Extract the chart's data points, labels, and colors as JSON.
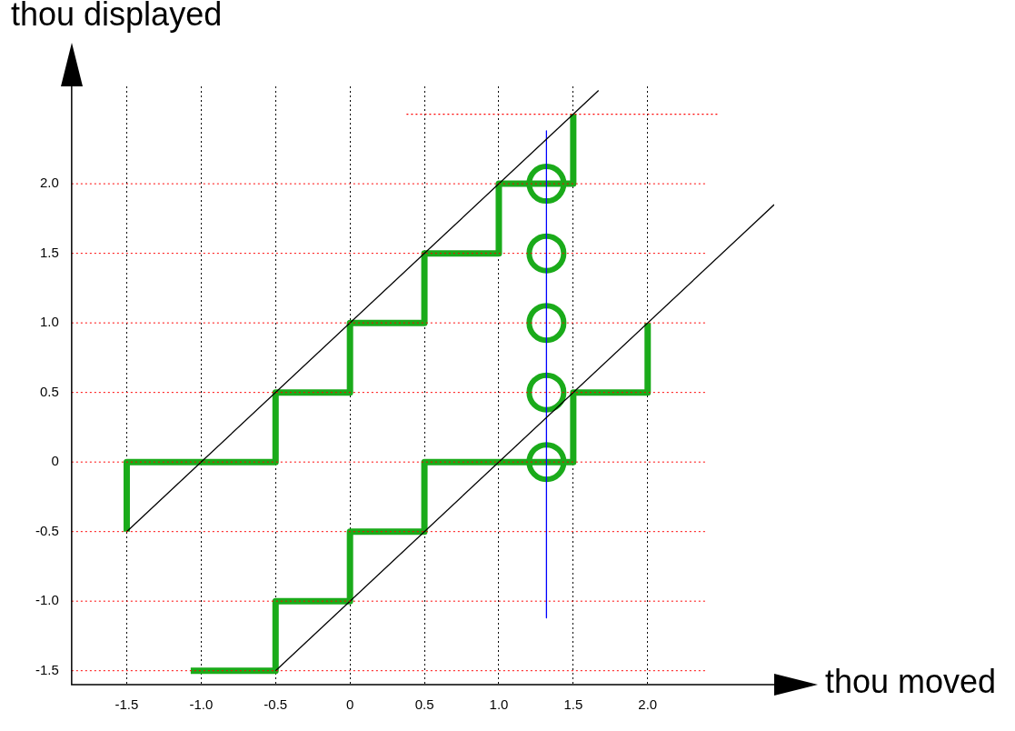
{
  "chart_data": {
    "type": "line",
    "xlabel": "thou moved",
    "ylabel": "thou displayed",
    "xlim": [
      -1.87,
      2.85
    ],
    "ylim": [
      -1.6,
      2.7
    ],
    "xticks": [
      -1.5,
      {
        "value": -1,
        "label": "-1.0"
      },
      -0.5,
      0,
      0.5,
      {
        "value": 1,
        "label": "1.0"
      },
      1.5,
      {
        "value": 2,
        "label": "2.0"
      }
    ],
    "yticks": [
      -1.5,
      {
        "value": -1,
        "label": "-1.0"
      },
      -0.5,
      0,
      0.5,
      {
        "value": 1,
        "label": "1.0"
      },
      1.5,
      {
        "value": 2,
        "label": "2.0"
      }
    ],
    "grid": "x",
    "legend": false,
    "ref_lines": [
      {
        "axis": "y",
        "value": -1.5,
        "color": "#ff0000",
        "line_style": "dotted"
      },
      {
        "axis": "y",
        "value": -1,
        "color": "#ff0000",
        "line_style": "dotted"
      },
      {
        "axis": "y",
        "value": -0.5,
        "color": "#ff0000",
        "line_style": "dotted"
      },
      {
        "axis": "y",
        "value": 0,
        "color": "#ff0000",
        "line_style": "dotted"
      },
      {
        "axis": "y",
        "value": 0.5,
        "color": "#ff0000",
        "line_style": "dotted"
      },
      {
        "axis": "y",
        "value": 1,
        "color": "#ff0000",
        "line_style": "dotted"
      },
      {
        "axis": "y",
        "value": 1.5,
        "color": "#ff0000",
        "line_style": "dotted"
      },
      {
        "axis": "y",
        "value": 2,
        "color": "#ff0000",
        "line_style": "dotted"
      }
    ],
    "series": [
      {
        "color": "#000000",
        "x": [
          -1.5,
          1.67
        ],
        "values": [
          -0.5,
          2.67
        ]
      },
      {
        "color": "#000000",
        "x": [
          -0.5,
          2.85
        ],
        "values": [
          -1.5,
          1.85
        ]
      },
      {
        "color": "#0000ff",
        "x": [
          1.32,
          1.32
        ],
        "values": [
          2.38,
          -1.12
        ]
      },
      {
        "color": "#ff0000",
        "line_style": "dotted",
        "x": [
          0.38,
          2.48
        ],
        "values": [
          2.5,
          2.5
        ]
      },
      {
        "color": "#1aab1a",
        "x": [
          -1.5,
          -1.5,
          -0.5,
          -0.5,
          0,
          0,
          0.5,
          0.5,
          1,
          1,
          1.5,
          1.5
        ],
        "values": [
          -0.5,
          0,
          0,
          0.5,
          0.5,
          1,
          1,
          1.5,
          1.5,
          2,
          2,
          2.5
        ]
      },
      {
        "color": "#1aab1a",
        "x": [
          -1.07,
          -0.5,
          -0.5,
          0,
          0,
          0.5,
          0.5,
          1.5,
          1.5,
          2,
          2
        ],
        "values": [
          -1.5,
          -1.5,
          -1,
          -1,
          -0.5,
          -0.5,
          0,
          0,
          0.5,
          0.5,
          1
        ]
      },
      {
        "type": "scatter",
        "color": "#1aab1a",
        "marker": "circle",
        "x": [
          1.32,
          1.32,
          1.32,
          1.32,
          1.32
        ],
        "values": [
          0,
          0.5,
          1,
          1.5,
          2
        ]
      }
    ]
  }
}
